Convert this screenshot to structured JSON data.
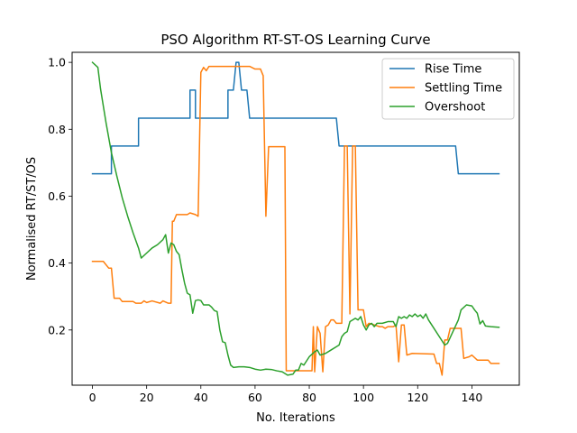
{
  "chart_data": {
    "type": "line",
    "title": "PSO Algorithm RT-ST-OS Learning Curve",
    "xlabel": "No. Iterations",
    "ylabel": "Normalised RT/ST/OS",
    "xlim": [
      -7.5,
      157.5
    ],
    "ylim": [
      0.035,
      1.03
    ],
    "xticks": [
      0,
      20,
      40,
      60,
      80,
      100,
      120,
      140
    ],
    "yticks": [
      0.2,
      0.4,
      0.6,
      0.8,
      1.0
    ],
    "grid": false,
    "legend": "upper right",
    "series": [
      {
        "name": "Rise Time",
        "color": "#1f77b4",
        "points": [
          [
            0,
            0.667
          ],
          [
            7,
            0.667
          ],
          [
            7,
            0.75
          ],
          [
            17,
            0.75
          ],
          [
            17,
            0.833
          ],
          [
            36,
            0.833
          ],
          [
            36,
            0.917
          ],
          [
            38,
            0.917
          ],
          [
            38,
            0.833
          ],
          [
            50,
            0.833
          ],
          [
            50,
            0.917
          ],
          [
            52,
            0.917
          ],
          [
            53,
            1.0
          ],
          [
            54,
            1.0
          ],
          [
            55,
            0.917
          ],
          [
            57,
            0.917
          ],
          [
            58,
            0.833
          ],
          [
            90,
            0.833
          ],
          [
            91,
            0.75
          ],
          [
            134,
            0.75
          ],
          [
            135,
            0.667
          ],
          [
            150,
            0.667
          ]
        ]
      },
      {
        "name": "Settling Time",
        "color": "#ff7f0e",
        "points": [
          [
            0,
            0.405
          ],
          [
            4,
            0.405
          ],
          [
            6,
            0.385
          ],
          [
            7,
            0.385
          ],
          [
            8,
            0.295
          ],
          [
            10,
            0.295
          ],
          [
            11,
            0.285
          ],
          [
            15,
            0.285
          ],
          [
            16,
            0.28
          ],
          [
            18,
            0.28
          ],
          [
            19,
            0.287
          ],
          [
            20,
            0.282
          ],
          [
            22,
            0.287
          ],
          [
            25,
            0.28
          ],
          [
            26,
            0.287
          ],
          [
            28,
            0.28
          ],
          [
            29,
            0.28
          ],
          [
            29.5,
            0.525
          ],
          [
            30,
            0.525
          ],
          [
            31,
            0.545
          ],
          [
            35,
            0.545
          ],
          [
            36,
            0.55
          ],
          [
            38,
            0.545
          ],
          [
            39,
            0.54
          ],
          [
            40,
            0.97
          ],
          [
            41,
            0.985
          ],
          [
            42,
            0.975
          ],
          [
            43,
            0.988
          ],
          [
            56,
            0.988
          ],
          [
            58,
            0.988
          ],
          [
            60,
            0.98
          ],
          [
            62,
            0.98
          ],
          [
            63,
            0.96
          ],
          [
            64,
            0.54
          ],
          [
            65,
            0.748
          ],
          [
            71,
            0.748
          ],
          [
            71.5,
            0.078
          ],
          [
            81,
            0.078
          ],
          [
            81.5,
            0.21
          ],
          [
            82,
            0.075
          ],
          [
            83,
            0.21
          ],
          [
            84,
            0.19
          ],
          [
            85,
            0.075
          ],
          [
            86,
            0.21
          ],
          [
            87,
            0.215
          ],
          [
            88,
            0.23
          ],
          [
            89,
            0.23
          ],
          [
            90,
            0.22
          ],
          [
            92,
            0.22
          ],
          [
            93,
            0.75
          ],
          [
            94,
            0.75
          ],
          [
            95,
            0.248
          ],
          [
            96,
            0.75
          ],
          [
            97,
            0.75
          ],
          [
            98,
            0.26
          ],
          [
            100,
            0.26
          ],
          [
            101,
            0.21
          ],
          [
            102,
            0.22
          ],
          [
            104,
            0.215
          ],
          [
            106,
            0.21
          ],
          [
            107,
            0.21
          ],
          [
            108,
            0.205
          ],
          [
            109,
            0.21
          ],
          [
            111,
            0.21
          ],
          [
            112,
            0.215
          ],
          [
            113,
            0.105
          ],
          [
            114,
            0.215
          ],
          [
            115,
            0.215
          ],
          [
            116,
            0.125
          ],
          [
            118,
            0.13
          ],
          [
            126,
            0.128
          ],
          [
            127,
            0.1
          ],
          [
            128,
            0.1
          ],
          [
            129,
            0.065
          ],
          [
            130,
            0.17
          ],
          [
            131,
            0.17
          ],
          [
            132,
            0.205
          ],
          [
            136,
            0.205
          ],
          [
            137,
            0.115
          ],
          [
            139,
            0.12
          ],
          [
            140,
            0.125
          ],
          [
            142,
            0.11
          ],
          [
            146,
            0.11
          ],
          [
            147,
            0.1
          ],
          [
            150,
            0.1
          ]
        ]
      },
      {
        "name": "Overshoot",
        "color": "#2ca02c",
        "points": [
          [
            0,
            1.0
          ],
          [
            2,
            0.985
          ],
          [
            3,
            0.92
          ],
          [
            5,
            0.82
          ],
          [
            7,
            0.73
          ],
          [
            9,
            0.66
          ],
          [
            11,
            0.595
          ],
          [
            13,
            0.54
          ],
          [
            15,
            0.49
          ],
          [
            17,
            0.445
          ],
          [
            18,
            0.415
          ],
          [
            20,
            0.43
          ],
          [
            22,
            0.445
          ],
          [
            24,
            0.455
          ],
          [
            26,
            0.47
          ],
          [
            27,
            0.485
          ],
          [
            28,
            0.43
          ],
          [
            29,
            0.46
          ],
          [
            30,
            0.455
          ],
          [
            31,
            0.435
          ],
          [
            32,
            0.425
          ],
          [
            33,
            0.38
          ],
          [
            34,
            0.34
          ],
          [
            35,
            0.31
          ],
          [
            36,
            0.305
          ],
          [
            37,
            0.25
          ],
          [
            38,
            0.288
          ],
          [
            39,
            0.29
          ],
          [
            40,
            0.288
          ],
          [
            41,
            0.275
          ],
          [
            43,
            0.275
          ],
          [
            44,
            0.268
          ],
          [
            45,
            0.258
          ],
          [
            46,
            0.255
          ],
          [
            47,
            0.2
          ],
          [
            48,
            0.165
          ],
          [
            49,
            0.162
          ],
          [
            50,
            0.125
          ],
          [
            51,
            0.095
          ],
          [
            52,
            0.088
          ],
          [
            54,
            0.09
          ],
          [
            56,
            0.09
          ],
          [
            58,
            0.088
          ],
          [
            60,
            0.083
          ],
          [
            62,
            0.08
          ],
          [
            64,
            0.083
          ],
          [
            66,
            0.082
          ],
          [
            68,
            0.078
          ],
          [
            70,
            0.075
          ],
          [
            72,
            0.065
          ],
          [
            74,
            0.068
          ],
          [
            75,
            0.08
          ],
          [
            76,
            0.08
          ],
          [
            77,
            0.1
          ],
          [
            78,
            0.095
          ],
          [
            80,
            0.12
          ],
          [
            82,
            0.135
          ],
          [
            83,
            0.14
          ],
          [
            84,
            0.125
          ],
          [
            86,
            0.13
          ],
          [
            88,
            0.14
          ],
          [
            90,
            0.15
          ],
          [
            91,
            0.155
          ],
          [
            92,
            0.18
          ],
          [
            93,
            0.19
          ],
          [
            94,
            0.195
          ],
          [
            95,
            0.225
          ],
          [
            97,
            0.235
          ],
          [
            98,
            0.23
          ],
          [
            99,
            0.24
          ],
          [
            100,
            0.215
          ],
          [
            101,
            0.2
          ],
          [
            102,
            0.215
          ],
          [
            103,
            0.22
          ],
          [
            104,
            0.21
          ],
          [
            105,
            0.22
          ],
          [
            107,
            0.22
          ],
          [
            109,
            0.225
          ],
          [
            111,
            0.225
          ],
          [
            112,
            0.21
          ],
          [
            113,
            0.24
          ],
          [
            114,
            0.235
          ],
          [
            115,
            0.24
          ],
          [
            116,
            0.235
          ],
          [
            117,
            0.245
          ],
          [
            118,
            0.24
          ],
          [
            119,
            0.248
          ],
          [
            120,
            0.24
          ],
          [
            121,
            0.245
          ],
          [
            122,
            0.235
          ],
          [
            123,
            0.248
          ],
          [
            124,
            0.23
          ],
          [
            126,
            0.205
          ],
          [
            128,
            0.18
          ],
          [
            130,
            0.155
          ],
          [
            131,
            0.16
          ],
          [
            133,
            0.195
          ],
          [
            135,
            0.23
          ],
          [
            136,
            0.26
          ],
          [
            138,
            0.275
          ],
          [
            140,
            0.272
          ],
          [
            141,
            0.26
          ],
          [
            142,
            0.25
          ],
          [
            143,
            0.218
          ],
          [
            144,
            0.228
          ],
          [
            145,
            0.212
          ],
          [
            147,
            0.21
          ],
          [
            150,
            0.208
          ]
        ]
      }
    ]
  }
}
